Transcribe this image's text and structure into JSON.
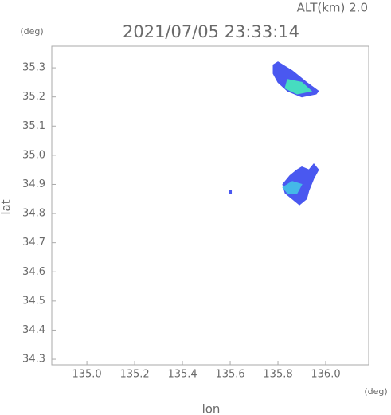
{
  "chart_data": {
    "type": "map",
    "title": "2021/07/05 23:33:14",
    "subtitle": "ALT(km) 2.0",
    "x_label": "lon",
    "y_label": "lat",
    "x_unit": "(deg)",
    "y_unit": "(deg)",
    "xlim": [
      134.853,
      136.18
    ],
    "ylim": [
      34.281,
      35.374
    ],
    "xticks": [
      {
        "value": 135,
        "label": "135.0"
      },
      135.2,
      135.4,
      135.6,
      135.8,
      {
        "value": 136,
        "label": "136.0"
      }
    ],
    "yticks": [
      34.3,
      34.4,
      34.5,
      34.6,
      34.7,
      34.8,
      34.9,
      {
        "value": 35,
        "label": "35.0"
      },
      35.1,
      35.2,
      35.3
    ],
    "regions": [
      {
        "color": "#4a58f0",
        "lon": [
          135.78,
          135.8,
          135.86,
          135.92,
          135.97,
          135.96,
          135.9,
          135.84,
          135.8,
          135.78
        ],
        "lat": [
          35.31,
          35.32,
          35.29,
          35.25,
          35.22,
          35.21,
          35.2,
          35.22,
          35.25,
          35.28
        ]
      },
      {
        "color": "#46dcc0",
        "lon": [
          135.84,
          135.9,
          135.94,
          135.88,
          135.83
        ],
        "lat": [
          35.26,
          35.25,
          35.22,
          35.21,
          35.23
        ]
      },
      {
        "color": "#4a58f0",
        "lon": [
          135.82,
          135.85,
          135.88,
          135.9,
          135.93,
          135.95,
          135.97,
          135.95,
          135.93,
          135.92,
          135.89,
          135.86,
          135.83
        ],
        "lat": [
          34.9,
          34.93,
          34.95,
          34.96,
          34.95,
          34.97,
          34.95,
          34.92,
          34.88,
          34.85,
          34.83,
          34.85,
          34.87
        ]
      },
      {
        "color": "#44b8e8",
        "lon": [
          135.82,
          135.86,
          135.9,
          135.88,
          135.84
        ],
        "lat": [
          34.89,
          34.91,
          34.9,
          34.87,
          34.87
        ]
      },
      {
        "color": "#4a58f0",
        "lon": [
          135.595,
          135.605,
          135.605,
          135.595
        ],
        "lat": [
          34.88,
          34.88,
          34.87,
          34.87
        ]
      }
    ]
  }
}
